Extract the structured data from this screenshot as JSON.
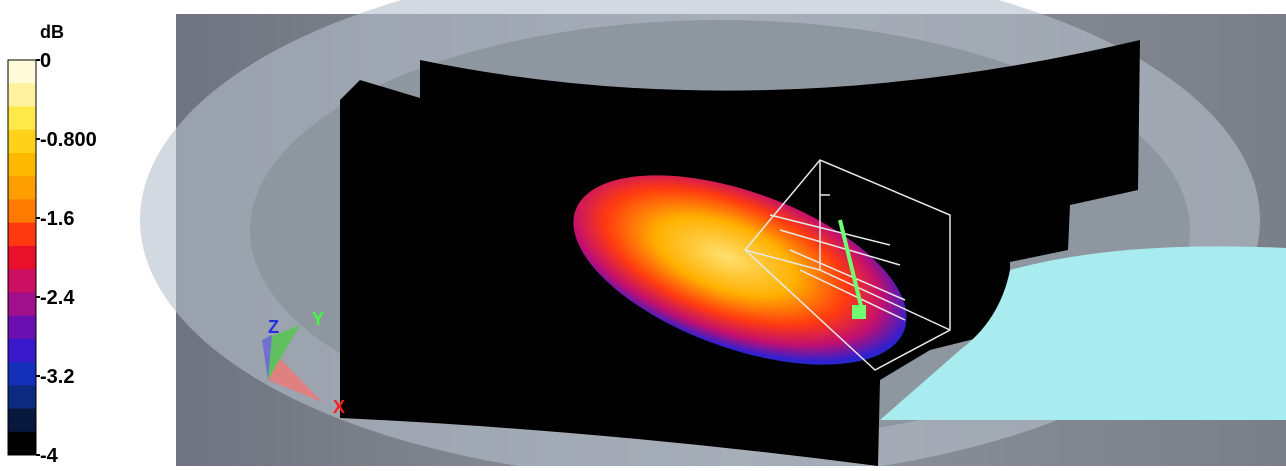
{
  "legend": {
    "unit": "dB",
    "range": [
      -4,
      0
    ],
    "ticks": [
      0,
      {
        "value": -0.8,
        "label": "-0.800"
      },
      -1.6,
      -2.4,
      -3.2,
      -4
    ],
    "colors": [
      "#fffbd8",
      "#fff3a0",
      "#ffe84a",
      "#ffd21a",
      "#ffb800",
      "#ff9e00",
      "#ff7a00",
      "#ff3a10",
      "#e8102a",
      "#cc0f60",
      "#a0108a",
      "#6a10b0",
      "#3818c8",
      "#1430b8",
      "#0c2a80",
      "#08183c",
      "#000000"
    ]
  },
  "axes_triad": {
    "labels": [
      "Z",
      "Y",
      "X"
    ]
  }
}
